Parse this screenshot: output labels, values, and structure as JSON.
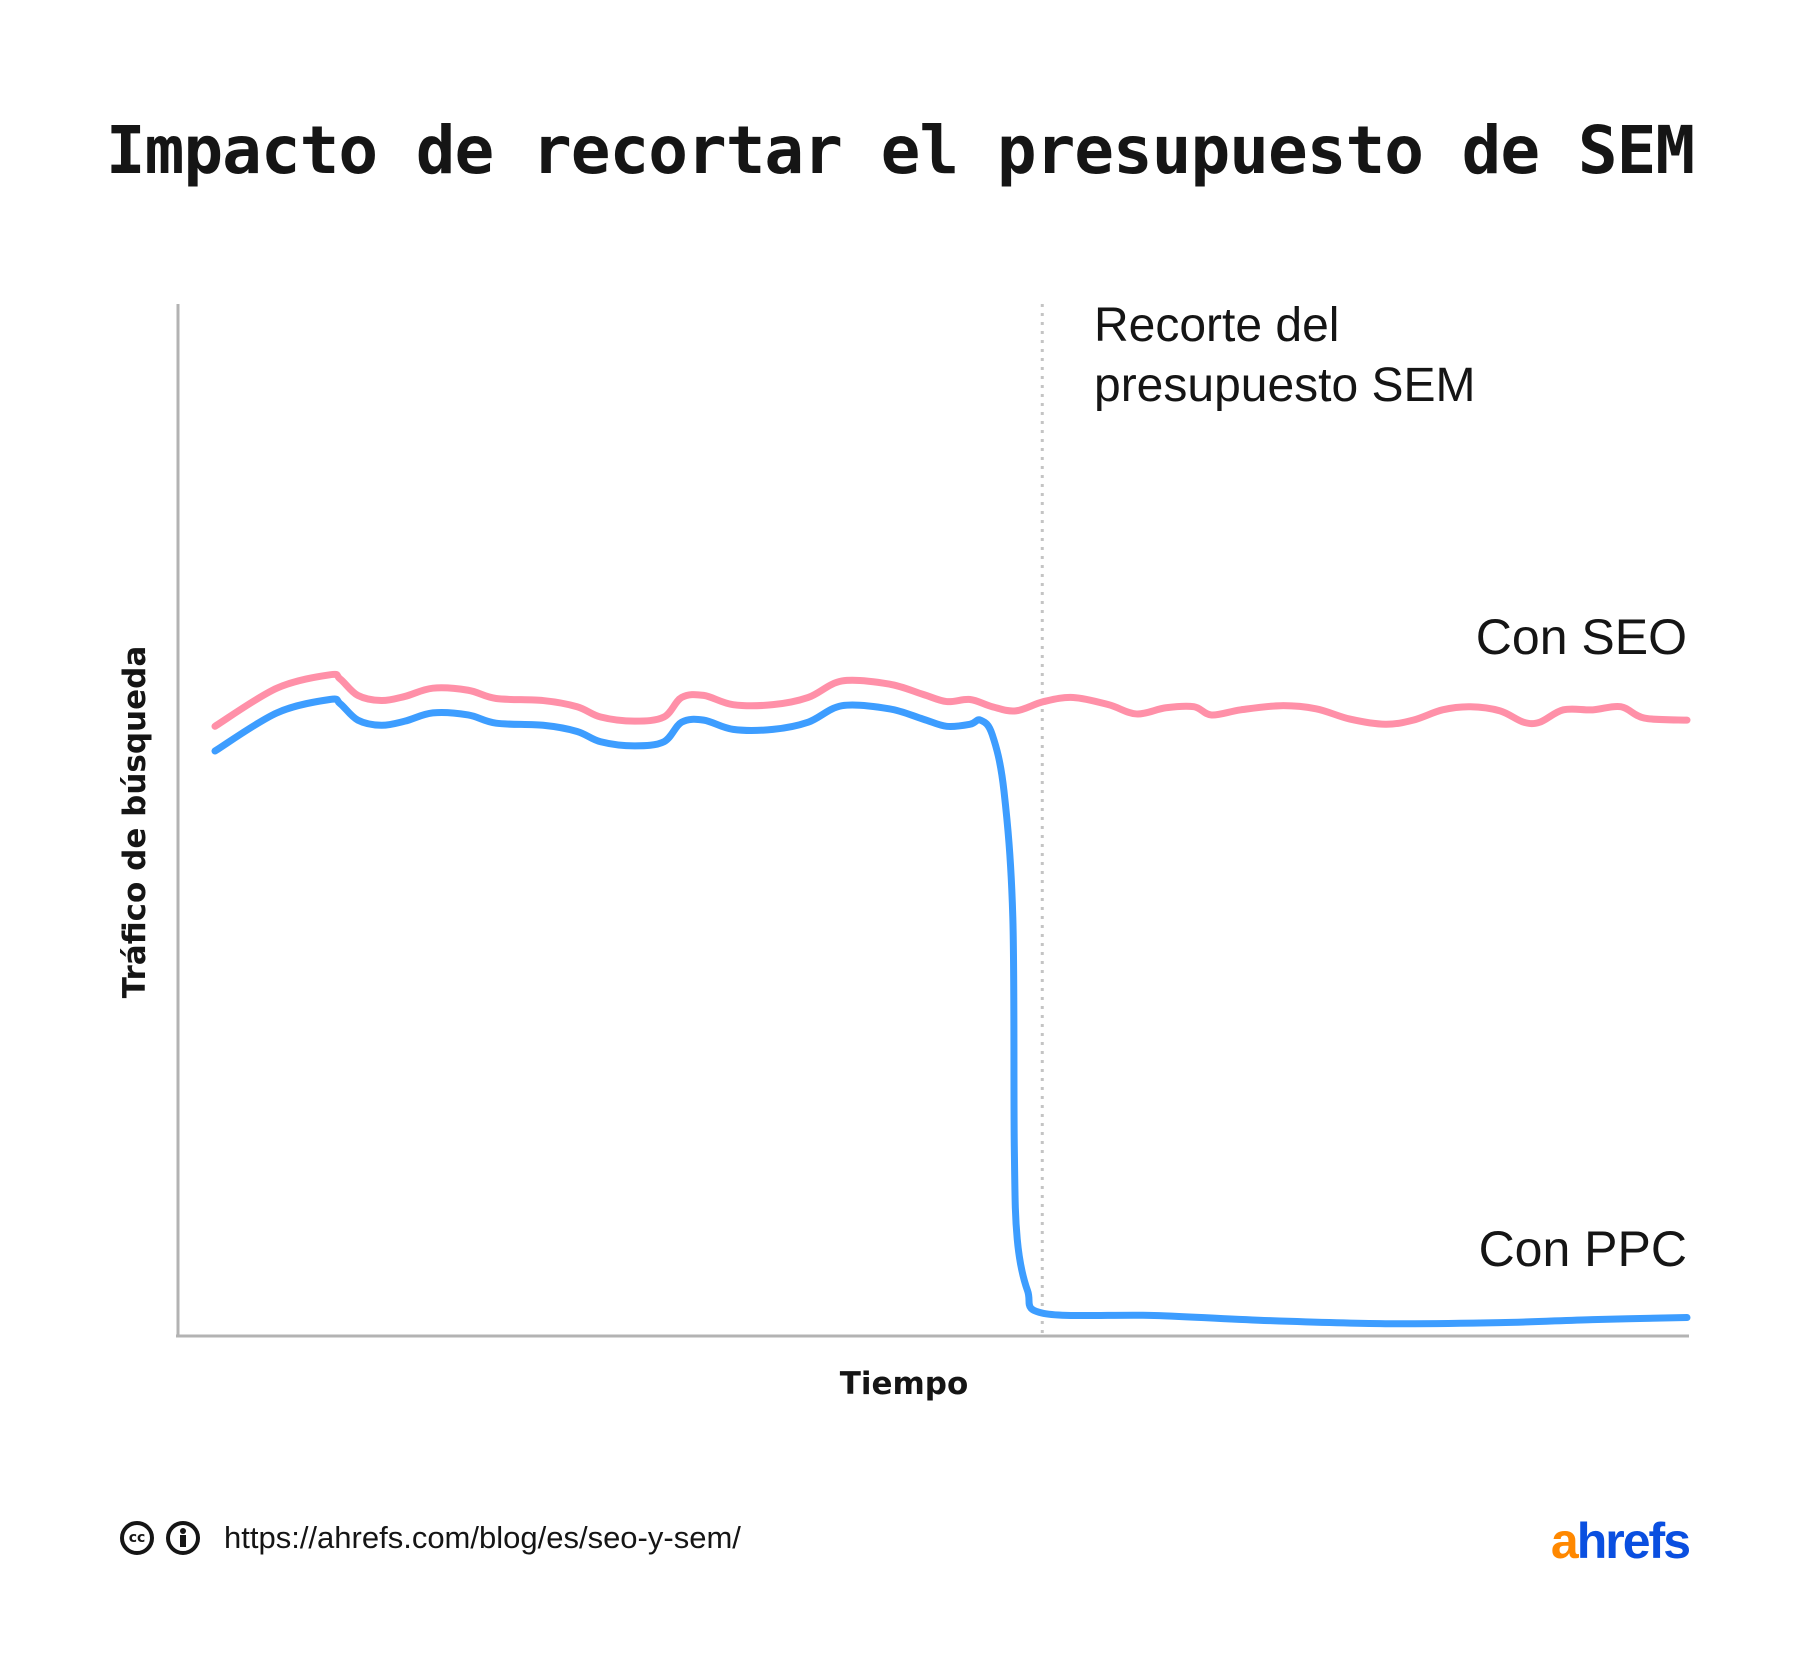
{
  "chart_data": {
    "type": "line",
    "title": "Impacto de recortar el presupuesto de SEM",
    "xlabel": "Tiempo",
    "ylabel": "Tráfico de búsqueda",
    "xlim": [
      0,
      100
    ],
    "ylim": [
      0,
      100
    ],
    "grid": false,
    "ticks": false,
    "annotation": {
      "lines": [
        "Recorte del",
        "presupuesto SEM"
      ],
      "x": 56.2
    },
    "series": [
      {
        "name": "Con SEO",
        "color": "#ff90a8",
        "points": [
          [
            0,
            59.0
          ],
          [
            4.2,
            62.7
          ],
          [
            7.8,
            64.0
          ],
          [
            8.5,
            63.6
          ],
          [
            9.7,
            62.0
          ],
          [
            11.3,
            61.5
          ],
          [
            12.9,
            61.9
          ],
          [
            14.8,
            62.7
          ],
          [
            17.2,
            62.5
          ],
          [
            19.1,
            61.7
          ],
          [
            22.3,
            61.5
          ],
          [
            24.6,
            60.9
          ],
          [
            26.2,
            59.9
          ],
          [
            28.5,
            59.5
          ],
          [
            30.5,
            59.9
          ],
          [
            31.7,
            61.8
          ],
          [
            33.2,
            62.0
          ],
          [
            35.2,
            61.1
          ],
          [
            37.9,
            61.1
          ],
          [
            40.3,
            61.8
          ],
          [
            42.6,
            63.4
          ],
          [
            45.8,
            63.1
          ],
          [
            48.1,
            62.1
          ],
          [
            49.7,
            61.4
          ],
          [
            51.3,
            61.6
          ],
          [
            52.8,
            60.9
          ],
          [
            54.4,
            60.5
          ],
          [
            56.3,
            61.4
          ],
          [
            58.3,
            61.8
          ],
          [
            60.7,
            61.1
          ],
          [
            62.6,
            60.2
          ],
          [
            64.6,
            60.8
          ],
          [
            66.5,
            60.9
          ],
          [
            67.7,
            60.1
          ],
          [
            69.7,
            60.6
          ],
          [
            72.4,
            61.0
          ],
          [
            74.8,
            60.7
          ],
          [
            77.1,
            59.7
          ],
          [
            79.5,
            59.2
          ],
          [
            81.4,
            59.6
          ],
          [
            83.4,
            60.6
          ],
          [
            85.3,
            60.9
          ],
          [
            87.3,
            60.5
          ],
          [
            88.9,
            59.4
          ],
          [
            90.0,
            59.4
          ],
          [
            91.6,
            60.6
          ],
          [
            93.6,
            60.6
          ],
          [
            95.5,
            60.9
          ],
          [
            97.1,
            59.8
          ],
          [
            100,
            59.6
          ]
        ]
      },
      {
        "name": "Con PPC",
        "color": "#3d9dff",
        "points": [
          [
            0,
            56.6
          ],
          [
            4.2,
            60.3
          ],
          [
            7.8,
            61.6
          ],
          [
            8.5,
            61.2
          ],
          [
            9.7,
            59.6
          ],
          [
            11.3,
            59.1
          ],
          [
            12.9,
            59.5
          ],
          [
            14.8,
            60.3
          ],
          [
            17.2,
            60.1
          ],
          [
            19.1,
            59.3
          ],
          [
            22.3,
            59.1
          ],
          [
            24.6,
            58.5
          ],
          [
            26.2,
            57.5
          ],
          [
            28.5,
            57.1
          ],
          [
            30.5,
            57.5
          ],
          [
            31.7,
            59.4
          ],
          [
            33.2,
            59.6
          ],
          [
            35.2,
            58.7
          ],
          [
            37.9,
            58.7
          ],
          [
            40.3,
            59.4
          ],
          [
            42.6,
            61.0
          ],
          [
            45.8,
            60.7
          ],
          [
            48.1,
            59.7
          ],
          [
            49.7,
            59.0
          ],
          [
            51.3,
            59.2
          ],
          [
            52.0,
            59.6
          ],
          [
            52.8,
            58.2
          ],
          [
            53.6,
            52.7
          ],
          [
            54.2,
            40.4
          ],
          [
            54.3,
            18.2
          ],
          [
            54.5,
            9.2
          ],
          [
            55.2,
            4.2
          ],
          [
            56.3,
            2.0
          ],
          [
            63.8,
            1.8
          ],
          [
            71.6,
            1.3
          ],
          [
            79.5,
            1.0
          ],
          [
            87.3,
            1.1
          ],
          [
            93.6,
            1.4
          ],
          [
            100,
            1.6
          ]
        ]
      }
    ]
  },
  "footer": {
    "url": "https://ahrefs.com/blog/es/seo-y-sem/",
    "cc_icon": "cc-icon",
    "by_icon": "attribution-icon",
    "logo": {
      "a": "a",
      "rest": "hrefs",
      "a_color": "#ff8800",
      "rest_color": "#0a4fe0"
    }
  }
}
